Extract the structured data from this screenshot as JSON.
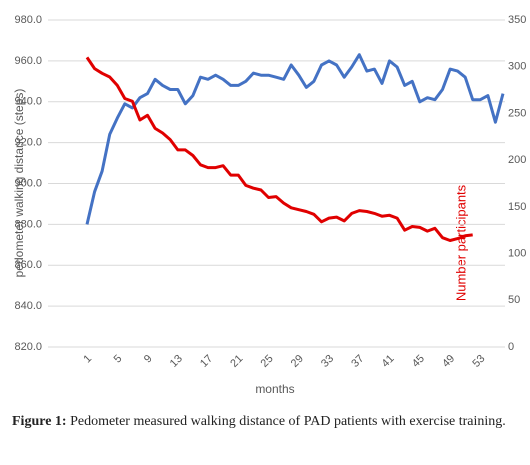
{
  "chart_data": {
    "type": "line",
    "y_label": "pedometer walking distance (steps)",
    "y2_label": "Number participants",
    "x_label": "months",
    "x": [
      1,
      2,
      3,
      4,
      5,
      6,
      7,
      8,
      9,
      10,
      11,
      12,
      13,
      14,
      15,
      16,
      17,
      18,
      19,
      20,
      21,
      22,
      23,
      24,
      25,
      26,
      27,
      28,
      29,
      30,
      31,
      32,
      33,
      34,
      35,
      36,
      37,
      38,
      39,
      40,
      41,
      42,
      43,
      44,
      45,
      46,
      47,
      48,
      49,
      50,
      51,
      52,
      53,
      54,
      55,
      56
    ],
    "xlim": [
      1,
      56
    ],
    "xticks": [
      1,
      5,
      9,
      13,
      17,
      21,
      25,
      29,
      33,
      37,
      41,
      45,
      49,
      53
    ],
    "ylim": [
      820,
      980
    ],
    "yticks": [
      {
        "value": 820,
        "label": "820.0"
      },
      {
        "value": 840,
        "label": "840.0"
      },
      {
        "value": 860,
        "label": "860.0"
      },
      {
        "value": 880,
        "label": "880.0"
      },
      {
        "value": 900,
        "label": "900.0"
      },
      {
        "value": 920,
        "label": "920.0"
      },
      {
        "value": 940,
        "label": "940.0"
      },
      {
        "value": 960,
        "label": "960.0"
      },
      {
        "value": 980,
        "label": "980.0"
      }
    ],
    "y2lim": [
      0,
      350
    ],
    "y2ticks": [
      0,
      50,
      100,
      150,
      200,
      250,
      300,
      350
    ],
    "grid": true,
    "series": [
      {
        "color": "#4472c4",
        "values": [
          880,
          896,
          906,
          924,
          932,
          939,
          937,
          942,
          944,
          951,
          948,
          946,
          946,
          939,
          943,
          952,
          951,
          953,
          951,
          948,
          948,
          950,
          954,
          953,
          953,
          952,
          951,
          958,
          953,
          947,
          950,
          958,
          960,
          958,
          952,
          957,
          963,
          955,
          956,
          949,
          960,
          957,
          948,
          950,
          940,
          942,
          941,
          946,
          956,
          955,
          952,
          941,
          941,
          943,
          930,
          944
        ]
      },
      {
        "color": "#e00000",
        "axis": "y2",
        "values": [
          310,
          298,
          293,
          289,
          280,
          266,
          263,
          243,
          248,
          234,
          229,
          222,
          211,
          211,
          205,
          195,
          192,
          192,
          194,
          184,
          184,
          173,
          170,
          168,
          160,
          161,
          154,
          149,
          147,
          145,
          142,
          134,
          138,
          139,
          135,
          143,
          146,
          145,
          143,
          140,
          141,
          138,
          125,
          129,
          128,
          124,
          127,
          117,
          114,
          116,
          119,
          120,
          null,
          null,
          null,
          null
        ]
      }
    ]
  },
  "caption": {
    "label": "Figure 1:",
    "text": "Pedometer measured walking distance of PAD patients with exercise training."
  }
}
